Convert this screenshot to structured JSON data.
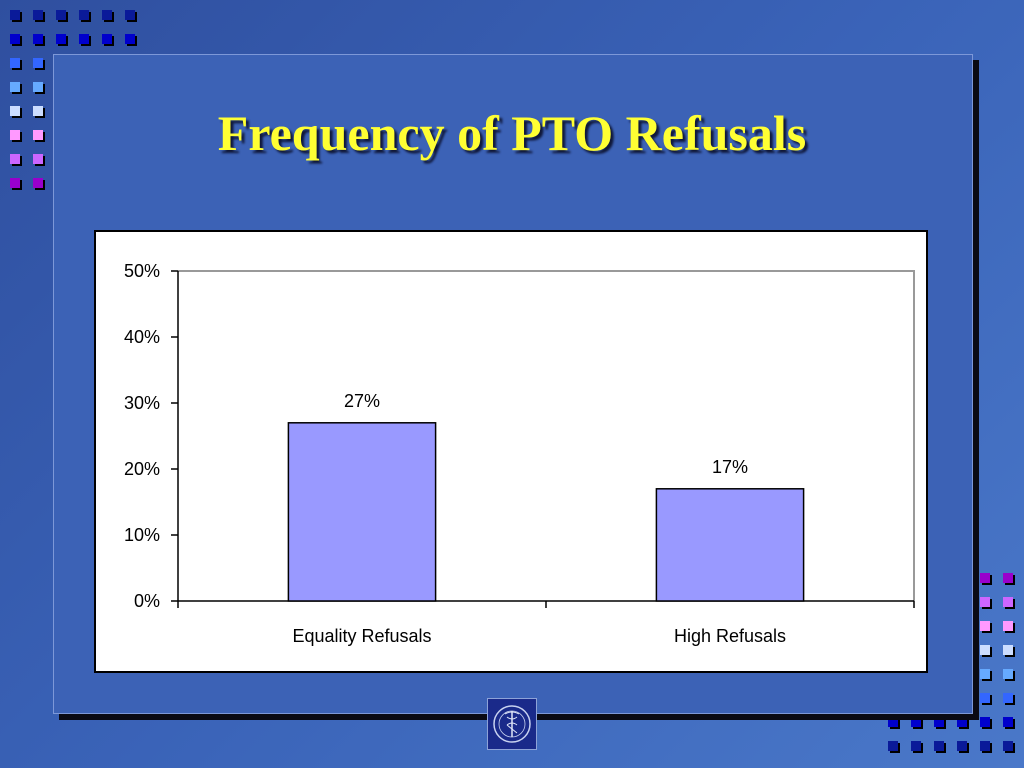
{
  "slide": {
    "title": "Frequency of PTO Refusals",
    "background_color": "#3a63b8",
    "title_color": "#ffff33"
  },
  "logo": {
    "icon": "caduceus-seal-icon"
  },
  "chart_data": {
    "type": "bar",
    "categories": [
      "Equality Refusals",
      "High Refusals"
    ],
    "values": [
      27,
      17
    ],
    "data_labels": [
      "27%",
      "17%"
    ],
    "yticks": [
      "0%",
      "10%",
      "20%",
      "30%",
      "40%",
      "50%"
    ],
    "ylim": [
      0,
      50
    ],
    "bar_color": "#9999ff",
    "grid": false,
    "legend": "none",
    "title": "",
    "xlabel": "",
    "ylabel": ""
  }
}
